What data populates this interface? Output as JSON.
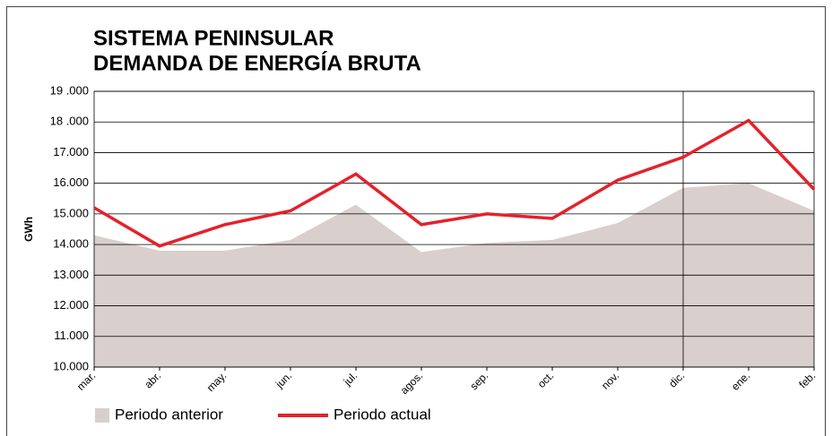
{
  "chart_data": {
    "type": "line",
    "title": [
      "SISTEMA PENINSULAR",
      "DEMANDA DE ENERGÍA BRUTA"
    ],
    "ylabel": "GWh",
    "categories": [
      "mar.",
      "abr.",
      "may.",
      "jun.",
      "jul.",
      "agos.",
      "sep.",
      "oct.",
      "nov.",
      "dic.",
      "ene.",
      "feb."
    ],
    "series": [
      {
        "name": "Periodo anterior",
        "style": "area",
        "color": "#d9cfcc",
        "values": [
          14300,
          13800,
          13800,
          14150,
          15300,
          13750,
          14050,
          14150,
          14700,
          15850,
          16000,
          15100
        ]
      },
      {
        "name": "Periodo actual",
        "style": "line",
        "color": "#e3222b",
        "values": [
          15200,
          13950,
          14650,
          15100,
          16300,
          14650,
          15000,
          14850,
          16100,
          16850,
          18050,
          15800
        ]
      }
    ],
    "ylim": [
      10000,
      19000
    ],
    "yticks": [
      {
        "value": 10000,
        "label": "10.000"
      },
      {
        "value": 11000,
        "label": "11.000"
      },
      {
        "value": 12000,
        "label": "12.000"
      },
      {
        "value": 13000,
        "label": "13.000"
      },
      {
        "value": 14000,
        "label": "14.000"
      },
      {
        "value": 15000,
        "label": "15.000"
      },
      {
        "value": 16000,
        "label": "16.000"
      },
      {
        "value": 17000,
        "label": "17.000"
      },
      {
        "value": 18000,
        "label": "18 .000"
      },
      {
        "value": 19000,
        "label": "19 .000"
      }
    ],
    "grid": true,
    "vertical_line": "dic."
  }
}
